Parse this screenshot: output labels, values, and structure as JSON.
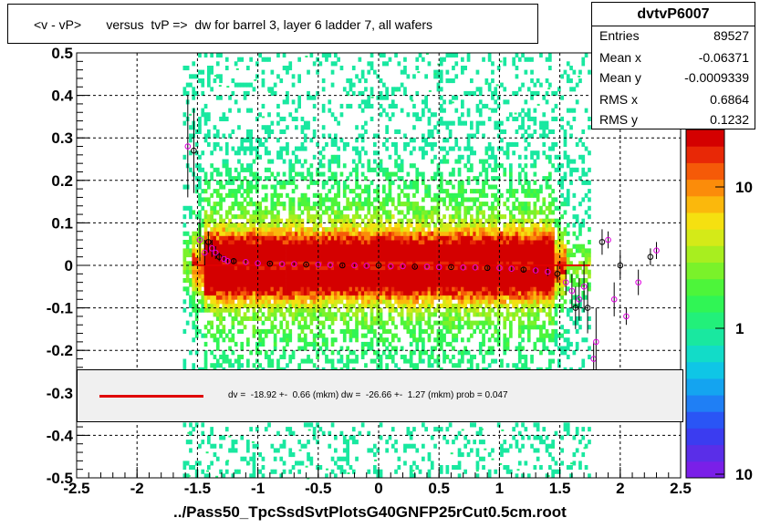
{
  "chart_data": {
    "type": "heatmap",
    "title": "<v - vP>       versus  tvP =>  dw for barrel 3, layer 6 ladder 7, all wafers",
    "xlabel": "../Pass50_TpcSsdSvtPlotsG40GNFP25rCut0.5cm.root",
    "ylabel": "",
    "xlim": [
      -2.5,
      2.5
    ],
    "ylim": [
      -0.5,
      0.5
    ],
    "x_ticks": [
      "-2.5",
      "-2",
      "-1.5",
      "-1",
      "-0.5",
      "0",
      "0.5",
      "1",
      "1.5",
      "2",
      "2.5"
    ],
    "y_ticks": [
      "0.5",
      "0.4",
      "0.3",
      "0.2",
      "0.1",
      "0",
      "-0.1",
      "-0.2",
      "-0.3",
      "-0.4",
      "-0.5"
    ],
    "grid": true,
    "colorbar": {
      "scale": "log",
      "tick_labels": [
        "10",
        "1",
        "10"
      ]
    },
    "stats": {
      "name": "dvtvP6007",
      "rows": [
        {
          "label": "Entries",
          "value": "89527"
        },
        {
          "label": "Mean x",
          "value": "-0.06371"
        },
        {
          "label": "Mean y",
          "value": "-0.0009339"
        },
        {
          "label": "RMS x",
          "value": "0.6864"
        },
        {
          "label": "RMS y",
          "value": "0.1232"
        }
      ]
    },
    "legend": {
      "text": "dv =  -18.92 +-  0.66 (mkm) dw =  -26.66 +-  1.27 (mkm) prob = 0.047",
      "color": "#e00000"
    },
    "fit_line": {
      "x": [
        -1.5,
        1.75
      ],
      "y": [
        0.0,
        0.0
      ],
      "color": "#e00000"
    },
    "profile_points": {
      "x": [
        -1.58,
        -1.53,
        -1.48,
        -1.44,
        -1.41,
        -1.38,
        -1.35,
        -1.32,
        -1.28,
        -1.25,
        -1.2,
        -1.1,
        -1.0,
        -0.9,
        -0.8,
        -0.7,
        -0.6,
        -0.5,
        -0.4,
        -0.3,
        -0.2,
        -0.1,
        0.0,
        0.1,
        0.2,
        0.3,
        0.4,
        0.5,
        0.6,
        0.7,
        0.8,
        0.9,
        1.0,
        1.1,
        1.2,
        1.3,
        1.4,
        1.48,
        1.55,
        1.6,
        1.63,
        1.66,
        1.7,
        1.73,
        1.78,
        1.8,
        1.85,
        1.9,
        1.95,
        2.0,
        2.05,
        2.15,
        2.25,
        2.3
      ],
      "y": [
        0.28,
        0.27,
        0.06,
        0.03,
        0.055,
        0.04,
        0.03,
        0.02,
        0.015,
        0.01,
        0.01,
        0.008,
        0.005,
        0.004,
        0.003,
        0.003,
        0.002,
        0.002,
        0.001,
        0.0,
        0.0,
        -0.001,
        0.0,
        -0.002,
        -0.002,
        -0.003,
        -0.003,
        -0.004,
        -0.004,
        -0.005,
        -0.005,
        -0.006,
        -0.006,
        -0.008,
        -0.01,
        -0.012,
        -0.015,
        -0.02,
        -0.04,
        -0.06,
        -0.1,
        -0.08,
        -0.05,
        -0.1,
        -0.22,
        -0.18,
        0.055,
        0.06,
        -0.08,
        0.0,
        -0.12,
        -0.04,
        0.02,
        0.035
      ],
      "yerr": [
        0.12,
        0.1,
        0.05,
        0.03,
        0.025,
        0.02,
        0.015,
        0.01,
        0.008,
        0.006,
        0.005,
        0.004,
        0.003,
        0.003,
        0.003,
        0.003,
        0.003,
        0.003,
        0.003,
        0.003,
        0.003,
        0.003,
        0.003,
        0.003,
        0.003,
        0.003,
        0.003,
        0.003,
        0.003,
        0.003,
        0.004,
        0.004,
        0.005,
        0.005,
        0.006,
        0.008,
        0.01,
        0.02,
        0.03,
        0.04,
        0.05,
        0.05,
        0.06,
        0.06,
        0.04,
        0.08,
        0.03,
        0.02,
        0.04,
        0.03,
        0.02,
        0.03,
        0.02,
        0.02
      ]
    }
  }
}
